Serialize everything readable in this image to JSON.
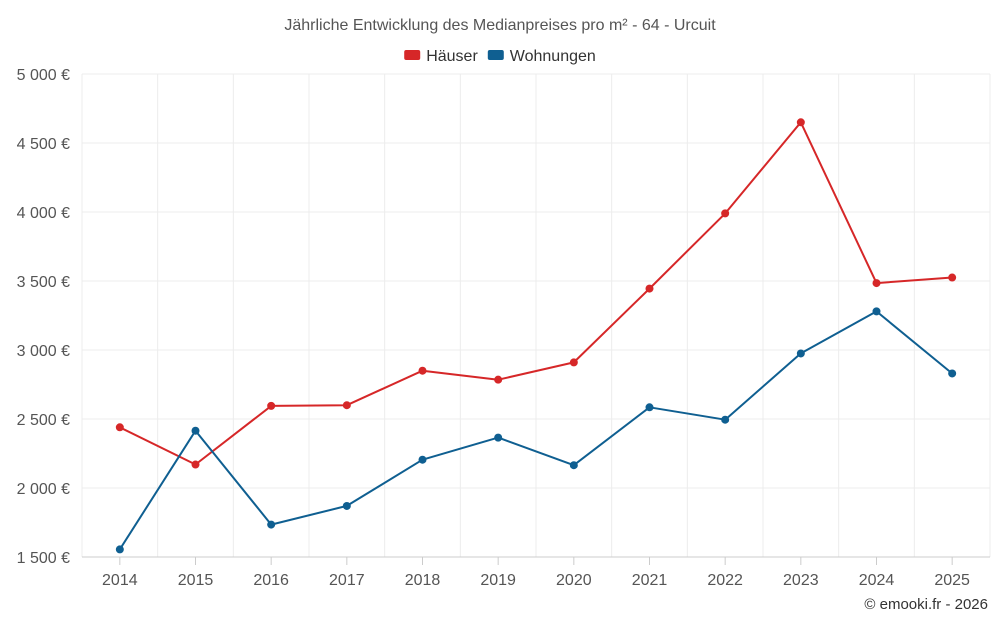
{
  "chart_data": {
    "type": "line",
    "title": "Jährliche Entwicklung des Medianpreises pro m² - 64 - Urcuit",
    "xlabel": "",
    "ylabel": "",
    "categories": [
      "2014",
      "2015",
      "2016",
      "2017",
      "2018",
      "2019",
      "2020",
      "2021",
      "2022",
      "2023",
      "2024",
      "2025"
    ],
    "ylim": [
      1500,
      5000
    ],
    "y_ticks": [
      1500,
      2000,
      2500,
      3000,
      3500,
      4000,
      4500,
      5000
    ],
    "y_tick_labels": [
      "1 500 €",
      "2 000 €",
      "2 500 €",
      "3 000 €",
      "3 500 €",
      "4 000 €",
      "4 500 €",
      "5 000 €"
    ],
    "legend_position": "top-center",
    "grid": true,
    "series": [
      {
        "name": "Häuser",
        "color": "#d62728",
        "values": [
          2440,
          2170,
          2595,
          2600,
          2850,
          2785,
          2910,
          3445,
          3990,
          4650,
          3485,
          3525
        ]
      },
      {
        "name": "Wohnungen",
        "color": "#0f5f91",
        "values": [
          1555,
          2415,
          1735,
          1870,
          2205,
          2365,
          2165,
          2585,
          2495,
          2975,
          3280,
          2830
        ]
      }
    ]
  },
  "credit": "© emooki.fr - 2026"
}
